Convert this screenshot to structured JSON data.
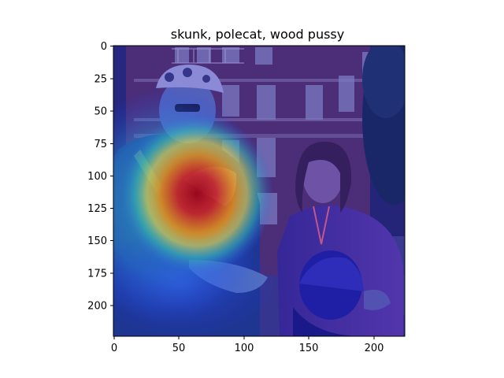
{
  "title": "skunk, polecat, wood pussy",
  "image_content": "photo of people on a street with a heatmap overlay",
  "axes": {
    "x_ticks": [
      "0",
      "50",
      "100",
      "150",
      "200"
    ],
    "y_ticks": [
      "0",
      "25",
      "50",
      "75",
      "100",
      "125",
      "150",
      "175",
      "200"
    ],
    "xlim": [
      0,
      224
    ],
    "ylim": [
      224,
      0
    ]
  },
  "colors": {
    "heat_hot": "#d01010",
    "heat_warm": "#ffd800",
    "heat_mid": "#30e0a0",
    "heat_cool": "#2050ff",
    "heat_cold": "#14148c"
  }
}
